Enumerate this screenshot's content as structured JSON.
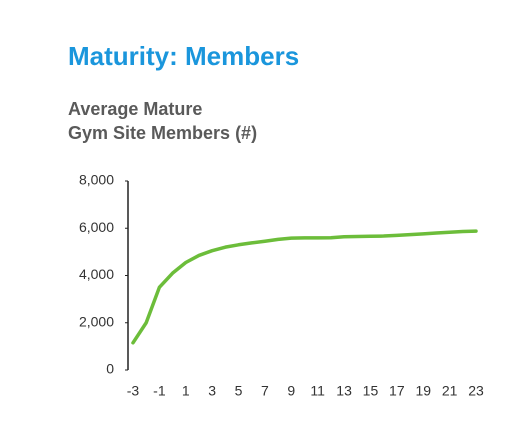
{
  "chart_data": {
    "type": "line",
    "title": "Maturity: Members",
    "subtitle": [
      "Average Mature",
      "Gym Site Members (#)"
    ],
    "x": [
      -3,
      -2,
      -1,
      0,
      1,
      2,
      3,
      4,
      5,
      6,
      7,
      8,
      9,
      10,
      11,
      12,
      13,
      14,
      15,
      16,
      17,
      18,
      19,
      20,
      21,
      22,
      23
    ],
    "series": [
      {
        "name": "Average Mature Gym Site Members",
        "color": "#6cbd3a",
        "values": [
          1150,
          2000,
          3500,
          4100,
          4550,
          4850,
          5050,
          5200,
          5300,
          5380,
          5450,
          5530,
          5580,
          5590,
          5590,
          5600,
          5640,
          5650,
          5660,
          5670,
          5700,
          5730,
          5760,
          5800,
          5830,
          5860,
          5880
        ]
      }
    ],
    "xlim": [
      -3,
      23
    ],
    "xticks": [
      -3,
      -1,
      1,
      3,
      5,
      7,
      9,
      11,
      13,
      15,
      17,
      19,
      21,
      23
    ],
    "ylim": [
      0,
      8000
    ],
    "yticks": [
      0,
      {
        "value": 2000,
        "label": "2,000"
      },
      {
        "value": 4000,
        "label": "4,000"
      },
      {
        "value": 6000,
        "label": "6,000"
      },
      {
        "value": 8000,
        "label": "8,000"
      }
    ]
  }
}
